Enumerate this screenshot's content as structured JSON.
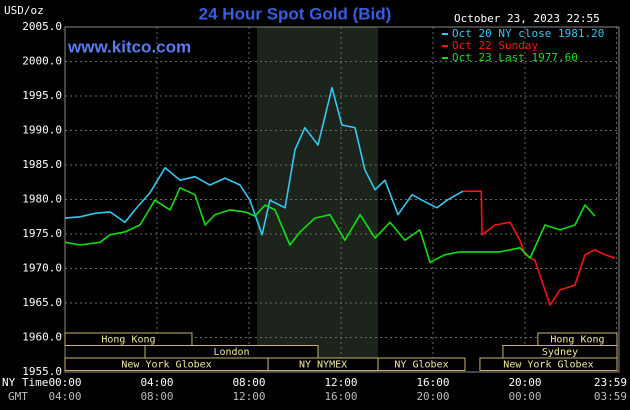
{
  "chart_data": {
    "type": "line",
    "title": "24 Hour Spot Gold (Bid)",
    "y_label": "USD/oz",
    "timestamp": "October 23, 2023 22:55",
    "watermark": "www.kitco.com",
    "x_label": "NY Time",
    "x2_label": "GMT",
    "xlim": [
      0,
      24
    ],
    "ylim": [
      1955,
      2005
    ],
    "xticks": [
      {
        "value": 0,
        "label": "00:00"
      },
      {
        "value": 4,
        "label": "04:00"
      },
      {
        "value": 8,
        "label": "08:00"
      },
      {
        "value": 12,
        "label": "12:00"
      },
      {
        "value": 16,
        "label": "16:00"
      },
      {
        "value": 20,
        "label": "20:00"
      },
      {
        "value": 23.983,
        "label": "23:59"
      }
    ],
    "x2_tick_labels": [
      "04:00",
      "08:00",
      "12:00",
      "16:00",
      "20:00",
      "00:00",
      "03:59"
    ],
    "yticks": [
      {
        "value": 1955,
        "label": "1955.0"
      },
      {
        "value": 1960,
        "label": "1960.0"
      },
      {
        "value": 1965,
        "label": "1965.0"
      },
      {
        "value": 1970,
        "label": "1970.0"
      },
      {
        "value": 1975,
        "label": "1975.0"
      },
      {
        "value": 1980,
        "label": "1980.0"
      },
      {
        "value": 1985,
        "label": "1985.0"
      },
      {
        "value": 1990,
        "label": "1990.0"
      },
      {
        "value": 1995,
        "label": "1995.0"
      },
      {
        "value": 2000,
        "label": "2000.0"
      },
      {
        "value": 2005,
        "label": "2005.0"
      }
    ],
    "grid": true,
    "legend": "top-right",
    "shaded_range": [
      8.35,
      13.61
    ],
    "series": [
      {
        "name": "Oct 20 NY close 1981.20",
        "color": "#33c8f0",
        "x": [
          0,
          0.65,
          1.3,
          1.96,
          2.61,
          3.04,
          3.7,
          4.35,
          5.0,
          5.65,
          6.3,
          6.96,
          7.61,
          8.04,
          8.57,
          8.91,
          9.57,
          10.0,
          10.43,
          11.0,
          11.61,
          12.04,
          12.61,
          13.04,
          13.48,
          13.91,
          14.48,
          15.09,
          15.52,
          16.17,
          16.61,
          17.3
        ],
        "values": [
          1977.3,
          1977.5,
          1978.0,
          1978.2,
          1976.7,
          1978.5,
          1981.0,
          1984.6,
          1982.8,
          1983.3,
          1982.1,
          1983.1,
          1982.1,
          1979.9,
          1974.9,
          1979.9,
          1978.8,
          1987.2,
          1990.4,
          1987.9,
          1996.2,
          1990.8,
          1990.4,
          1984.3,
          1981.4,
          1982.8,
          1977.8,
          1980.7,
          1979.9,
          1978.8,
          1979.9,
          1981.2
        ]
      },
      {
        "name": "Oct 22 Sunday",
        "color": "#ff1010",
        "x": [
          17.3,
          18.1,
          18.13,
          18.7,
          19.35,
          19.78,
          20.0,
          20.43,
          21.09,
          21.52,
          22.17,
          22.61,
          23.04,
          23.48,
          23.91
        ],
        "values": [
          1981.2,
          1981.2,
          1974.9,
          1976.3,
          1976.7,
          1974.1,
          1972.0,
          1971.2,
          1964.7,
          1966.9,
          1967.6,
          1972.0,
          1972.7,
          1972.0,
          1971.5
        ]
      },
      {
        "name": "Oct 23 Last 1977.60",
        "color": "#10e010",
        "x": [
          0,
          0.65,
          1.52,
          1.96,
          2.61,
          3.26,
          3.91,
          4.57,
          5.0,
          5.65,
          6.09,
          6.52,
          7.17,
          7.83,
          8.26,
          8.7,
          9.13,
          9.78,
          10.22,
          10.87,
          11.52,
          12.17,
          12.83,
          13.48,
          14.13,
          14.78,
          15.43,
          15.87,
          16.52,
          17.17,
          18.13,
          18.91,
          19.78,
          20.22,
          20.87,
          21.52,
          22.17,
          22.61,
          23.04
        ],
        "values": [
          1973.8,
          1973.4,
          1973.8,
          1974.9,
          1975.3,
          1976.3,
          1979.9,
          1978.5,
          1981.7,
          1980.7,
          1976.3,
          1977.8,
          1978.5,
          1978.2,
          1977.6,
          1979.2,
          1978.5,
          1973.4,
          1975.3,
          1977.3,
          1977.8,
          1974.1,
          1977.8,
          1974.4,
          1976.7,
          1974.1,
          1975.6,
          1970.9,
          1972.0,
          1972.4,
          1972.4,
          1972.4,
          1973.0,
          1971.5,
          1976.3,
          1975.6,
          1976.3,
          1979.2,
          1977.6
        ]
      }
    ],
    "sessions": [
      {
        "label": "Hong Kong",
        "start": 0,
        "end": 5.52,
        "row": 0
      },
      {
        "label": "London",
        "start": 3.48,
        "end": 11.0,
        "row": 1
      },
      {
        "label": "New York Globex",
        "start": 0,
        "end": 8.83,
        "row": 2
      },
      {
        "label": "NY NYMEX",
        "start": 8.83,
        "end": 13.61,
        "row": 2
      },
      {
        "label": "NY Globex",
        "start": 13.61,
        "end": 17.39,
        "row": 2
      },
      {
        "label": "Hong Kong",
        "start": 20.56,
        "end": 24,
        "row": 0
      },
      {
        "label": "Sydney",
        "start": 19.04,
        "end": 24,
        "row": 1
      },
      {
        "label": "New York Globex",
        "start": 18.04,
        "end": 24,
        "row": 2
      }
    ]
  }
}
